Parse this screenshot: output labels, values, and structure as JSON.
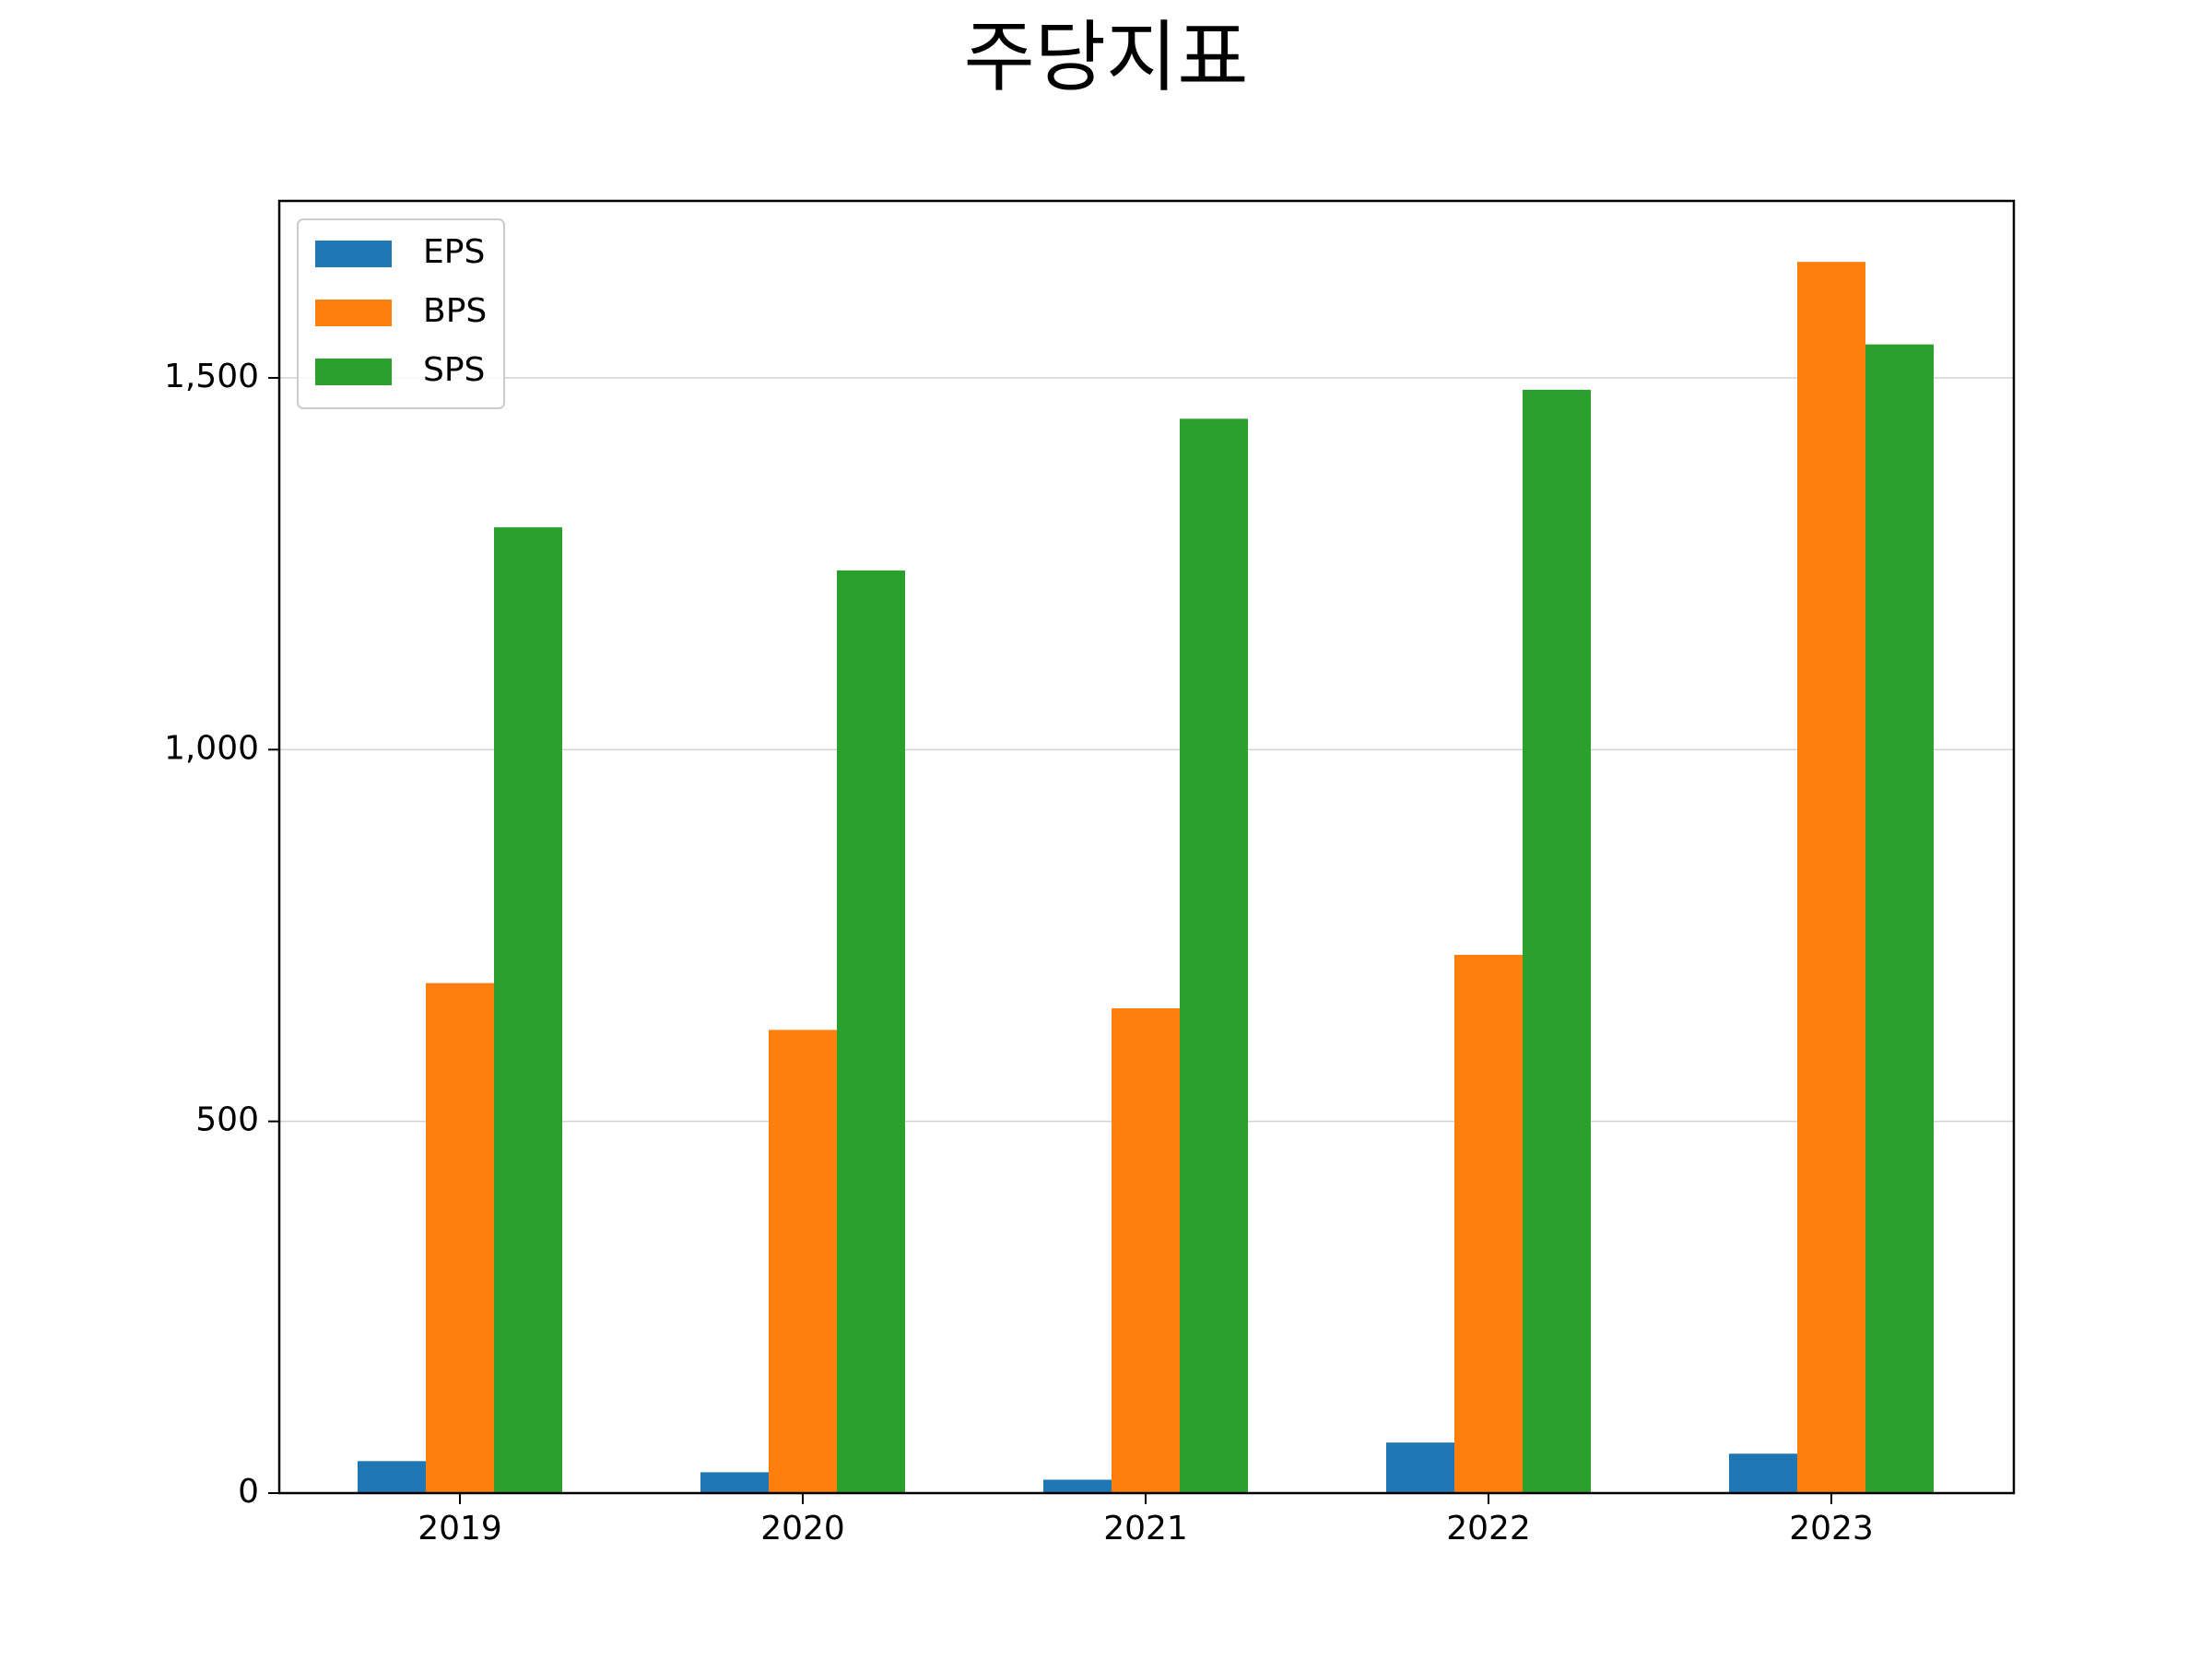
{
  "chart_data": {
    "type": "bar",
    "title": "주당지표",
    "xlabel": "",
    "ylabel": "",
    "categories": [
      "2019",
      "2020",
      "2021",
      "2022",
      "2023"
    ],
    "series": [
      {
        "name": "EPS",
        "color": "#1f77b4",
        "values": [
          43,
          28,
          18,
          68,
          53
        ]
      },
      {
        "name": "BPS",
        "color": "#ff7f0e",
        "values": [
          686,
          623,
          652,
          724,
          1656
        ]
      },
      {
        "name": "SPS",
        "color": "#2ca02c",
        "values": [
          1299,
          1241,
          1445,
          1484,
          1545
        ]
      }
    ],
    "ylim": [
      0,
      1738
    ],
    "yticks": [
      0,
      500,
      1000,
      1500
    ],
    "ytick_labels": [
      "0",
      "500",
      "1,000",
      "1,500"
    ],
    "grid": "y",
    "legend_position": "top-left"
  }
}
